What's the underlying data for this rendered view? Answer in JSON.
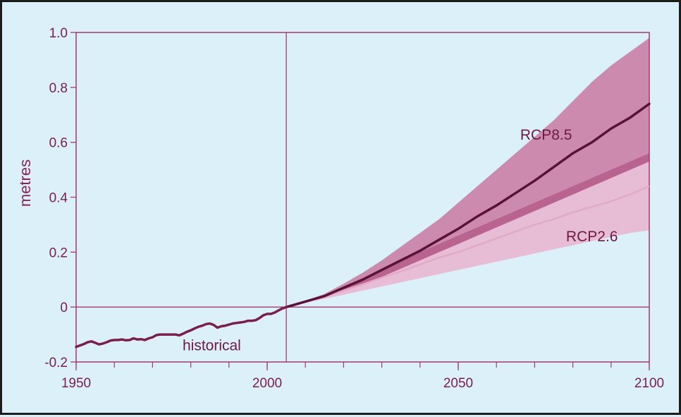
{
  "chart_data": {
    "type": "area",
    "title": "",
    "xlabel": "",
    "ylabel": "metres",
    "xlim": [
      1950,
      2100
    ],
    "ylim": [
      -0.2,
      1.0
    ],
    "x_ticks": [
      1950,
      2000,
      2050,
      2100
    ],
    "y_ticks": [
      -0.2,
      0,
      0.2,
      0.4,
      0.6,
      0.8,
      1.0
    ],
    "y_tick_labels": [
      "-0.2",
      "0",
      "0.2",
      "0.4",
      "0.6",
      "0.8",
      "1.0"
    ],
    "reference_year": 2005,
    "grid": false,
    "colors": {
      "background": "#dcf0fa",
      "axis": "#a23a6c",
      "historical": "#7a1f4a",
      "rcp85_line": "#5a1236",
      "rcp85_band": "#c8739f",
      "rcp26_line": "#e2aac6",
      "rcp26_band": "#e7b7cf",
      "overlap": "#b25a88"
    },
    "series": [
      {
        "name": "historical",
        "x": [
          1950,
          1951,
          1952,
          1953,
          1954,
          1955,
          1956,
          1957,
          1958,
          1959,
          1960,
          1961,
          1962,
          1963,
          1964,
          1965,
          1966,
          1967,
          1968,
          1969,
          1970,
          1971,
          1972,
          1973,
          1974,
          1975,
          1976,
          1977,
          1978,
          1979,
          1980,
          1981,
          1982,
          1983,
          1984,
          1985,
          1986,
          1987,
          1988,
          1989,
          1990,
          1991,
          1992,
          1993,
          1994,
          1995,
          1996,
          1997,
          1998,
          1999,
          2000,
          2001,
          2002,
          2003,
          2004,
          2005
        ],
        "y": [
          -0.145,
          -0.14,
          -0.135,
          -0.128,
          -0.125,
          -0.13,
          -0.136,
          -0.133,
          -0.128,
          -0.122,
          -0.12,
          -0.12,
          -0.118,
          -0.121,
          -0.12,
          -0.114,
          -0.118,
          -0.117,
          -0.12,
          -0.114,
          -0.11,
          -0.102,
          -0.1,
          -0.1,
          -0.1,
          -0.1,
          -0.1,
          -0.103,
          -0.097,
          -0.09,
          -0.085,
          -0.078,
          -0.072,
          -0.068,
          -0.062,
          -0.06,
          -0.065,
          -0.075,
          -0.07,
          -0.068,
          -0.064,
          -0.06,
          -0.058,
          -0.056,
          -0.054,
          -0.05,
          -0.05,
          -0.048,
          -0.04,
          -0.03,
          -0.025,
          -0.025,
          -0.02,
          -0.012,
          -0.005,
          0
        ]
      },
      {
        "name": "RCP8.5",
        "x": [
          2005,
          2010,
          2015,
          2020,
          2025,
          2030,
          2035,
          2040,
          2045,
          2050,
          2055,
          2060,
          2065,
          2070,
          2075,
          2080,
          2085,
          2090,
          2095,
          2100
        ],
        "y": [
          0,
          0.02,
          0.04,
          0.07,
          0.1,
          0.135,
          0.17,
          0.205,
          0.245,
          0.285,
          0.33,
          0.37,
          0.415,
          0.46,
          0.51,
          0.56,
          0.6,
          0.65,
          0.69,
          0.74
        ],
        "low": [
          0,
          0.018,
          0.035,
          0.057,
          0.082,
          0.11,
          0.14,
          0.17,
          0.2,
          0.23,
          0.26,
          0.29,
          0.32,
          0.35,
          0.38,
          0.41,
          0.44,
          0.47,
          0.5,
          0.53
        ],
        "high": [
          0,
          0.022,
          0.048,
          0.085,
          0.125,
          0.17,
          0.22,
          0.27,
          0.32,
          0.38,
          0.44,
          0.5,
          0.56,
          0.62,
          0.68,
          0.75,
          0.82,
          0.88,
          0.93,
          0.98
        ]
      },
      {
        "name": "RCP2.6",
        "x": [
          2005,
          2010,
          2015,
          2020,
          2025,
          2030,
          2035,
          2040,
          2045,
          2050,
          2055,
          2060,
          2065,
          2070,
          2075,
          2080,
          2085,
          2090,
          2095,
          2100
        ],
        "y": [
          0,
          0.02,
          0.037,
          0.06,
          0.083,
          0.107,
          0.13,
          0.155,
          0.18,
          0.2,
          0.225,
          0.25,
          0.275,
          0.3,
          0.32,
          0.345,
          0.365,
          0.385,
          0.41,
          0.44
        ],
        "low": [
          0,
          0.016,
          0.03,
          0.045,
          0.06,
          0.075,
          0.09,
          0.105,
          0.12,
          0.135,
          0.15,
          0.165,
          0.18,
          0.195,
          0.21,
          0.225,
          0.24,
          0.255,
          0.27,
          0.28
        ],
        "high": [
          0,
          0.024,
          0.045,
          0.075,
          0.105,
          0.14,
          0.17,
          0.2,
          0.23,
          0.26,
          0.29,
          0.32,
          0.35,
          0.38,
          0.41,
          0.44,
          0.47,
          0.5,
          0.53,
          0.56
        ]
      }
    ],
    "annotations": [
      {
        "text": "RCP8.5",
        "x": 2073,
        "y": 0.61
      },
      {
        "text": "RCP2.6",
        "x": 2085,
        "y": 0.24
      },
      {
        "text": "historical",
        "x": 1985.5,
        "y": -0.158
      }
    ]
  }
}
